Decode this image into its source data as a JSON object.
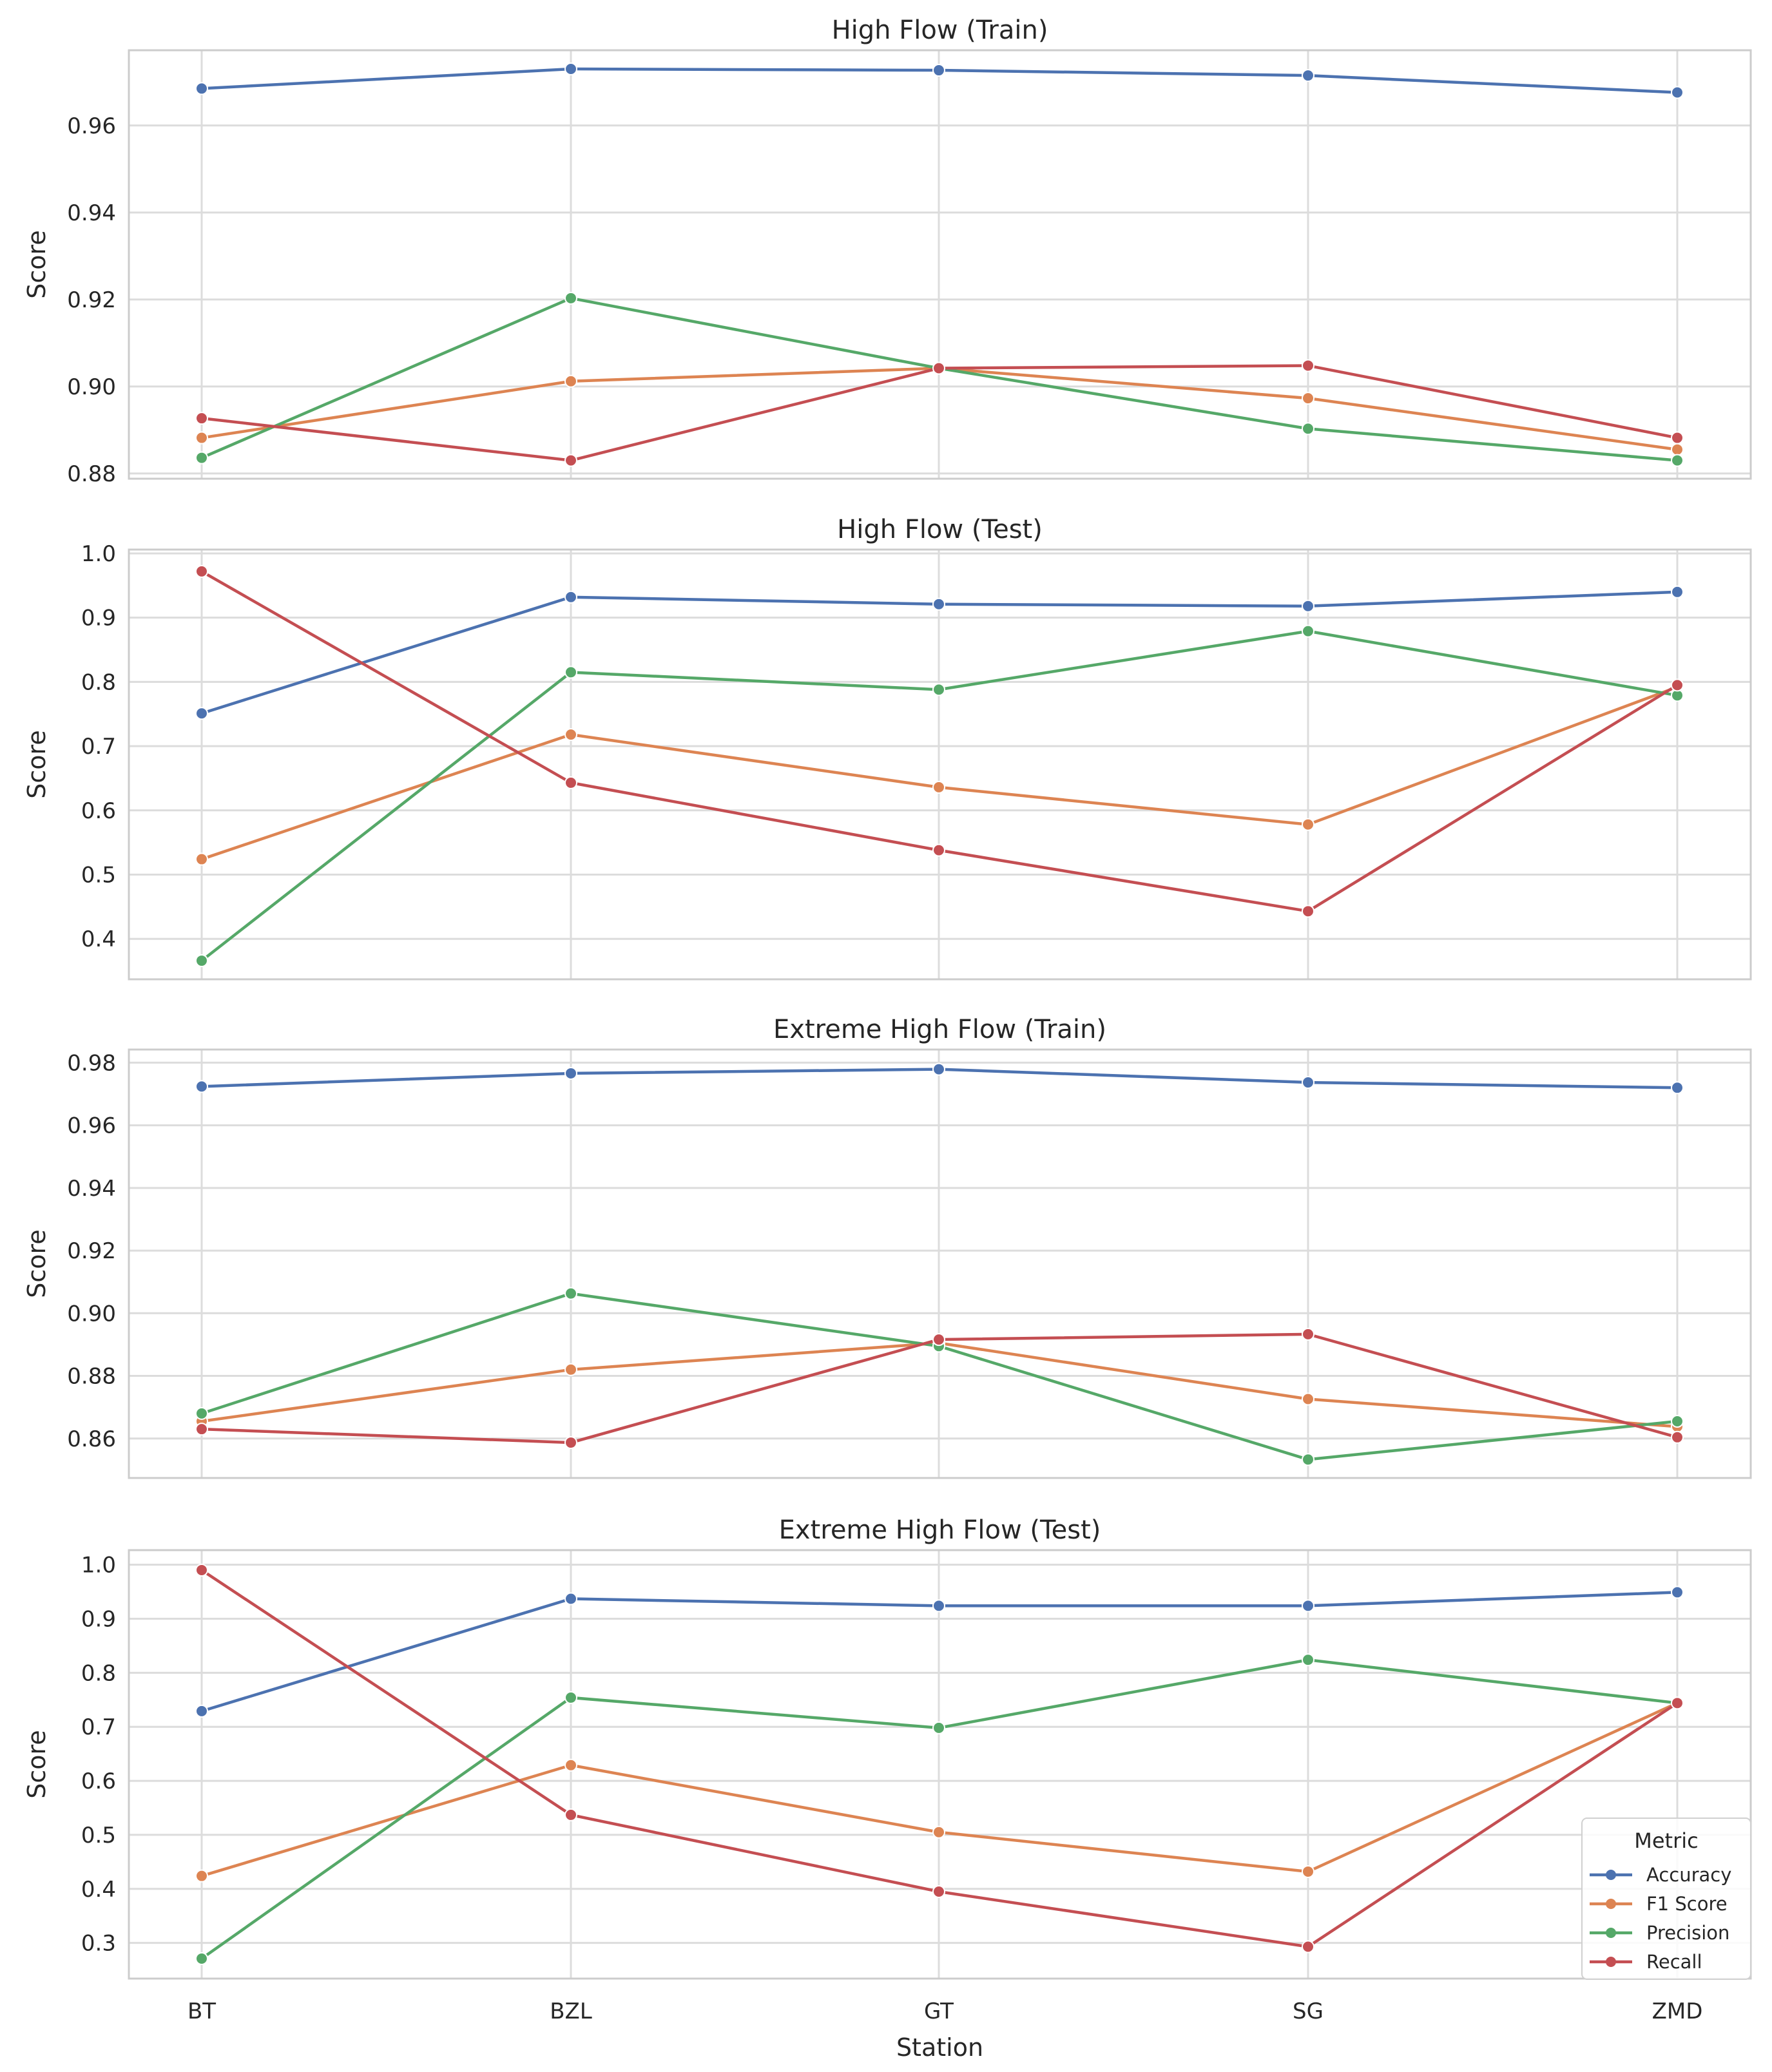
{
  "chart_data": [
    {
      "type": "line",
      "title": "High Flow (Train)",
      "xlabel": "",
      "ylabel": "Score",
      "categories": [
        "BT",
        "BZL",
        "GT",
        "SG",
        "ZMD"
      ],
      "ylim": [
        0.8788,
        0.9773
      ],
      "yticks": [
        0.88,
        0.9,
        0.92,
        0.94,
        0.96
      ],
      "ytick_labels": [
        "0.88",
        "0.90",
        "0.92",
        "0.94",
        "0.96"
      ],
      "grid": true,
      "series": [
        {
          "name": "Accuracy",
          "color": "#4c72b0",
          "values": [
            0.9685,
            0.973,
            0.9727,
            0.9715,
            0.9676
          ]
        },
        {
          "name": "F1 Score",
          "color": "#dd8452",
          "values": [
            0.8882,
            0.9012,
            0.9042,
            0.8973,
            0.8855
          ]
        },
        {
          "name": "Precision",
          "color": "#55a868",
          "values": [
            0.8836,
            0.9203,
            0.9042,
            0.8903,
            0.883
          ]
        },
        {
          "name": "Recall",
          "color": "#c44e52",
          "values": [
            0.8927,
            0.883,
            0.9042,
            0.9048,
            0.8882
          ]
        }
      ]
    },
    {
      "type": "line",
      "title": "High Flow (Test)",
      "xlabel": "",
      "ylabel": "Score",
      "categories": [
        "BT",
        "BZL",
        "GT",
        "SG",
        "ZMD"
      ],
      "ylim": [
        0.337,
        1.006
      ],
      "yticks": [
        0.4,
        0.5,
        0.6,
        0.7,
        0.8,
        0.9,
        1.0
      ],
      "ytick_labels": [
        "0.4",
        "0.5",
        "0.6",
        "0.7",
        "0.8",
        "0.9",
        "1.0"
      ],
      "grid": true,
      "series": [
        {
          "name": "Accuracy",
          "color": "#4c72b0",
          "values": [
            0.751,
            0.932,
            0.921,
            0.918,
            0.94
          ]
        },
        {
          "name": "F1 Score",
          "color": "#dd8452",
          "values": [
            0.524,
            0.718,
            0.636,
            0.578,
            0.792
          ]
        },
        {
          "name": "Precision",
          "color": "#55a868",
          "values": [
            0.366,
            0.815,
            0.788,
            0.879,
            0.779
          ]
        },
        {
          "name": "Recall",
          "color": "#c44e52",
          "values": [
            0.972,
            0.643,
            0.538,
            0.443,
            0.795
          ]
        }
      ]
    },
    {
      "type": "line",
      "title": "Extreme High Flow (Train)",
      "xlabel": "",
      "ylabel": "Score",
      "categories": [
        "BT",
        "BZL",
        "GT",
        "SG",
        "ZMD"
      ],
      "ylim": [
        0.8474,
        0.9842
      ],
      "yticks": [
        0.86,
        0.88,
        0.9,
        0.92,
        0.94,
        0.96,
        0.98
      ],
      "ytick_labels": [
        "0.86",
        "0.88",
        "0.90",
        "0.92",
        "0.94",
        "0.96",
        "0.98"
      ],
      "grid": true,
      "series": [
        {
          "name": "Accuracy",
          "color": "#4c72b0",
          "values": [
            0.9724,
            0.9766,
            0.9779,
            0.9737,
            0.972
          ]
        },
        {
          "name": "F1 Score",
          "color": "#dd8452",
          "values": [
            0.8655,
            0.882,
            0.8905,
            0.8726,
            0.8638
          ]
        },
        {
          "name": "Precision",
          "color": "#55a868",
          "values": [
            0.868,
            0.9063,
            0.8895,
            0.8533,
            0.8655
          ]
        },
        {
          "name": "Recall",
          "color": "#c44e52",
          "values": [
            0.863,
            0.8587,
            0.8916,
            0.8933,
            0.8604
          ]
        }
      ]
    },
    {
      "type": "line",
      "title": "Extreme High Flow (Test)",
      "xlabel": "Station",
      "ylabel": "Score",
      "categories": [
        "BT",
        "BZL",
        "GT",
        "SG",
        "ZMD"
      ],
      "ylim": [
        0.234,
        1.027
      ],
      "yticks": [
        0.3,
        0.4,
        0.5,
        0.6,
        0.7,
        0.8,
        0.9,
        1.0
      ],
      "ytick_labels": [
        "0.3",
        "0.4",
        "0.5",
        "0.6",
        "0.7",
        "0.8",
        "0.9",
        "1.0"
      ],
      "grid": true,
      "legend": {
        "title": "Metric",
        "position": "lower-right"
      },
      "series": [
        {
          "name": "Accuracy",
          "color": "#4c72b0",
          "values": [
            0.729,
            0.937,
            0.924,
            0.924,
            0.949
          ]
        },
        {
          "name": "F1 Score",
          "color": "#dd8452",
          "values": [
            0.424,
            0.629,
            0.505,
            0.432,
            0.744
          ]
        },
        {
          "name": "Precision",
          "color": "#55a868",
          "values": [
            0.271,
            0.754,
            0.698,
            0.824,
            0.744
          ]
        },
        {
          "name": "Recall",
          "color": "#c44e52",
          "values": [
            0.99,
            0.537,
            0.395,
            0.293,
            0.744
          ]
        }
      ]
    }
  ]
}
